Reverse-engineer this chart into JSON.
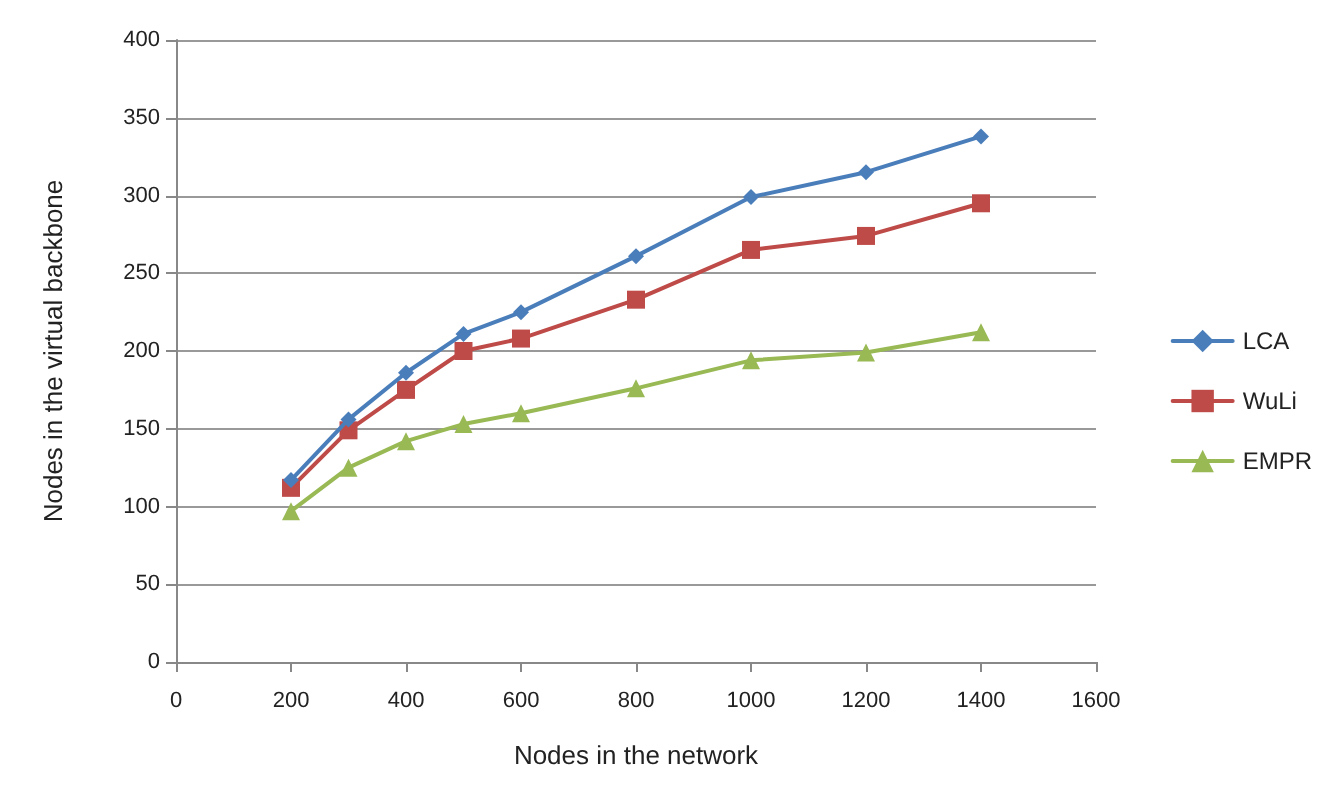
{
  "chart_data": {
    "type": "line",
    "xlabel": "Nodes in the network",
    "ylabel": "Nodes in the virtual backbone",
    "x": [
      200,
      300,
      400,
      500,
      600,
      800,
      1000,
      1200,
      1400
    ],
    "series": [
      {
        "name": "LCA",
        "color": "#4a7ebb",
        "marker": "diamond",
        "values": [
          117,
          156,
          186,
          211,
          225,
          261,
          299,
          315,
          338
        ]
      },
      {
        "name": "WuLi",
        "color": "#be4b48",
        "marker": "square",
        "values": [
          112,
          149,
          175,
          200,
          208,
          233,
          265,
          274,
          295
        ]
      },
      {
        "name": "EMPR",
        "color": "#98b954",
        "marker": "triangle",
        "values": [
          97,
          125,
          142,
          153,
          160,
          176,
          194,
          199,
          212
        ]
      }
    ],
    "xlim": [
      0,
      1600
    ],
    "xticks": [
      0,
      200,
      400,
      600,
      800,
      1000,
      1200,
      1400,
      1600
    ],
    "ylim": [
      0,
      400
    ],
    "yticks": [
      0,
      50,
      100,
      150,
      200,
      250,
      300,
      350,
      400
    ],
    "grid": "y",
    "legend": "right"
  }
}
